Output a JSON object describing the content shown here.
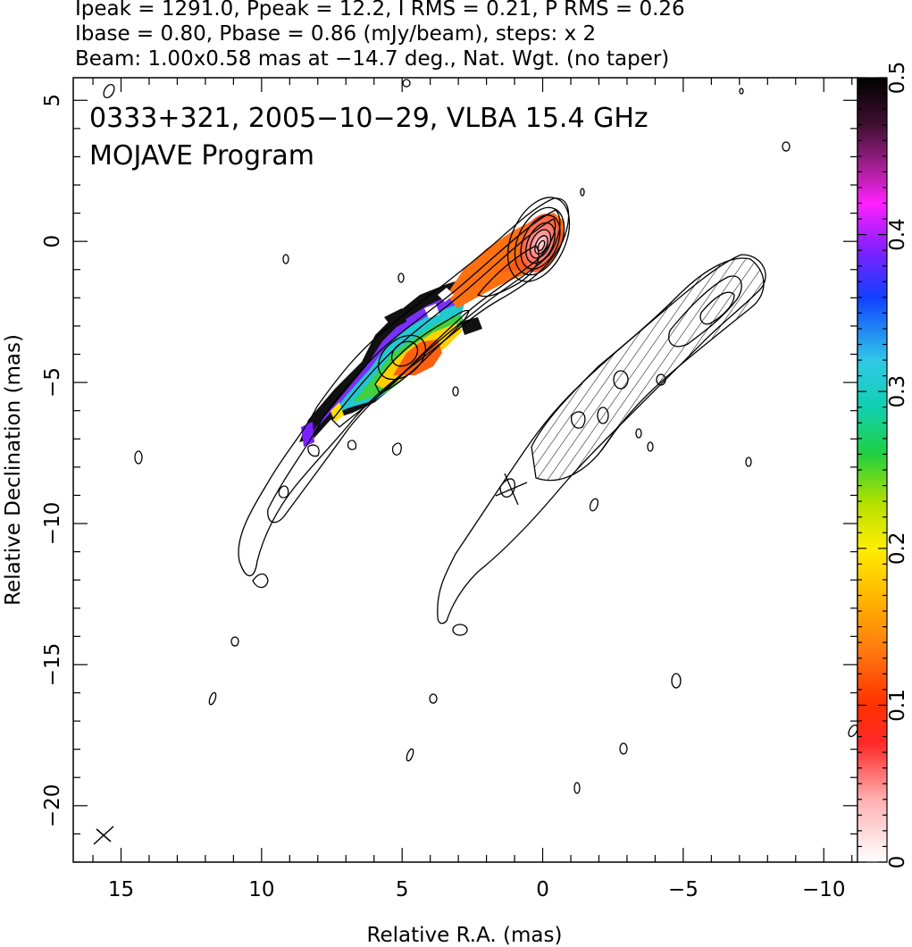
{
  "header": {
    "line1": "Ipeak = 1291.0, Ppeak = 12.2, I RMS = 0.21, P RMS = 0.26",
    "line2": "Ibase = 0.80, Pbase = 0.86 (mJy/beam), steps: x 2",
    "line3": "Beam: 1.00x0.58 mas at −14.7 deg., Nat. Wgt. (no taper)"
  },
  "plot": {
    "title": "0333+321, 2005−10−29, VLBA 15.4 GHz",
    "subtitle": "MOJAVE Program"
  },
  "chart_data": {
    "type": "heatmap",
    "xlabel": "Relative R.A. (mas)",
    "ylabel": "Relative Declination (mas)",
    "xlim": [
      16.7,
      -11.2
    ],
    "ylim": [
      -22,
      5.8
    ],
    "x_ticks": [
      15,
      10,
      5,
      0,
      -5,
      -10
    ],
    "x_tick_labels": [
      "15",
      "10",
      "5",
      "0",
      "−5",
      "−10"
    ],
    "y_ticks": [
      5,
      0,
      -5,
      -10,
      -15,
      -20
    ],
    "y_tick_labels": [
      "5",
      "0",
      "−5",
      "−10",
      "−15",
      "−20"
    ],
    "colorbar": {
      "range": [
        0,
        0.5
      ],
      "ticks": [
        0,
        0.1,
        0.2,
        0.3,
        0.4,
        0.5
      ],
      "tick_labels": [
        "0",
        "0.1",
        "0.2",
        "0.3",
        "0.4",
        "0.5"
      ]
    },
    "core_position_mas": [
      0,
      0
    ],
    "jet_axis_points_mas": [
      [
        0,
        0
      ],
      [
        2,
        -1.5
      ],
      [
        5,
        -3.8
      ],
      [
        7,
        -5.5
      ],
      [
        9,
        -7.5
      ],
      [
        10.5,
        -9.5
      ],
      [
        12,
        -11
      ]
    ],
    "beam": {
      "major_mas": 1.0,
      "minor_mas": 0.58,
      "pa_deg": -14.7
    }
  },
  "colors": {
    "axis": "#000000",
    "contour": "#000000",
    "background": "#ffffff"
  }
}
